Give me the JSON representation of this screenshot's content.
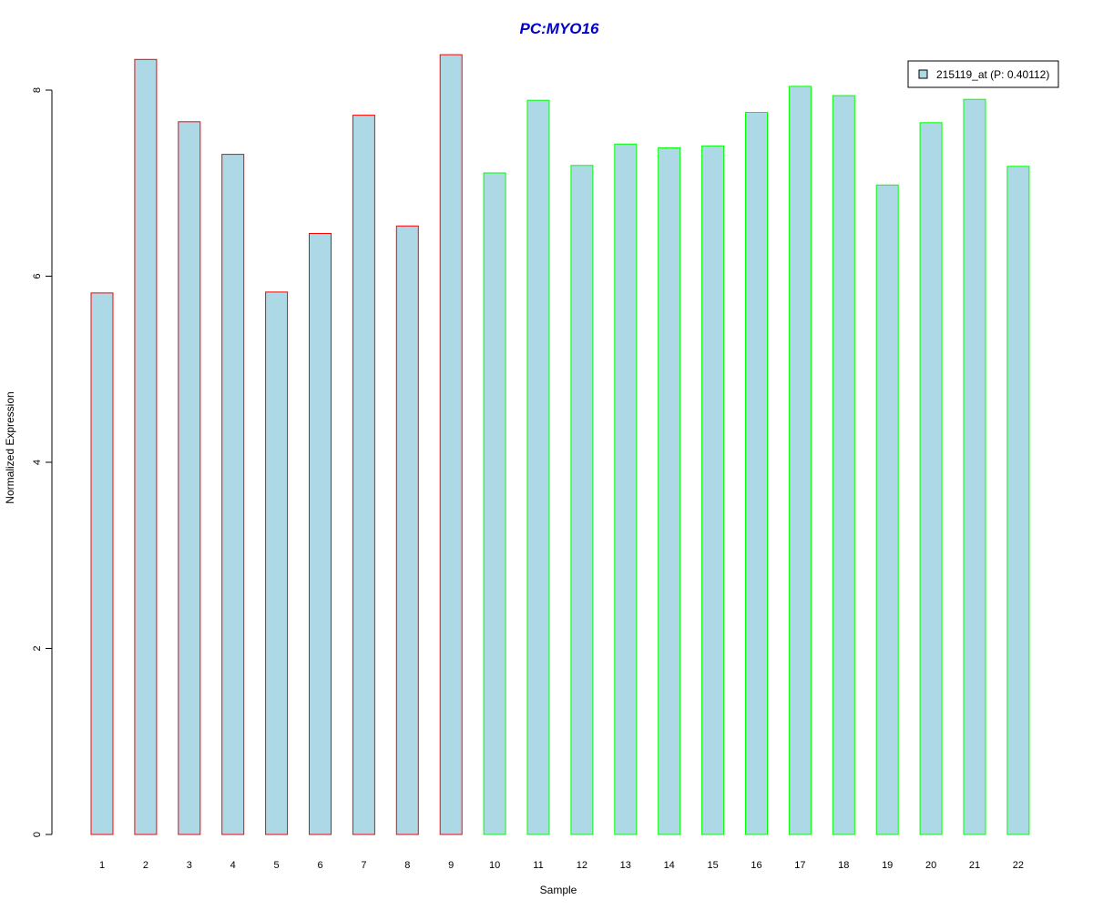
{
  "chart_data": {
    "type": "bar",
    "title": "PC:MYO16",
    "xlabel": "Sample",
    "ylabel": "Normalized Expression",
    "categories": [
      "1",
      "2",
      "3",
      "4",
      "5",
      "6",
      "7",
      "8",
      "9",
      "10",
      "11",
      "12",
      "13",
      "14",
      "15",
      "16",
      "17",
      "18",
      "19",
      "20",
      "21",
      "22"
    ],
    "series": [
      {
        "name": "215119_at (P: 0.40112)",
        "values": [
          5.82,
          8.33,
          7.66,
          7.31,
          5.83,
          6.46,
          7.73,
          6.54,
          8.38,
          7.11,
          7.89,
          7.19,
          7.42,
          7.38,
          7.4,
          7.76,
          8.04,
          7.94,
          6.98,
          7.65,
          7.9,
          7.18
        ]
      }
    ],
    "group_a_count": 9,
    "yticks": [
      0,
      2,
      4,
      6,
      8
    ],
    "ylim": [
      0,
      8.45
    ],
    "grid": false,
    "legend_position": "top-right",
    "colors": {
      "bar_fill": "#add8e6",
      "group_a_border": "#ff0000",
      "group_b_border": "#00ff00",
      "title": "#0000cc",
      "axis": "#000000"
    }
  }
}
